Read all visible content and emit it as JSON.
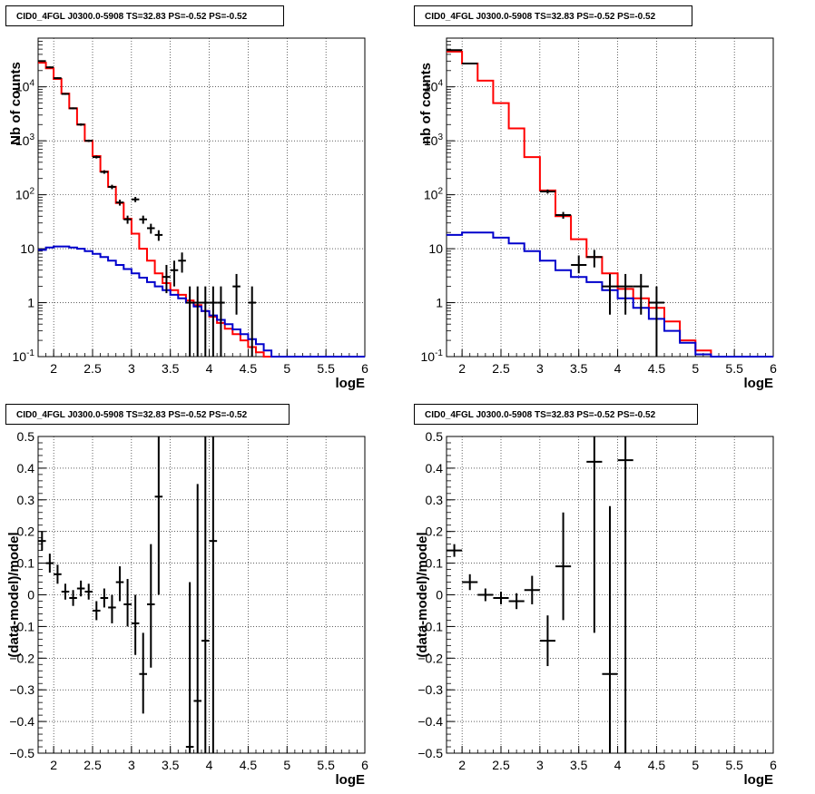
{
  "colors": {
    "data": "#000000",
    "total_model": "#ff0000",
    "component": "#0000cc",
    "grid": "#000000"
  },
  "chart_data": [
    {
      "type": "step",
      "title": "CID0_4FGL J0300.0-5908 TS=32.83 PS=-0.52 PS=-0.52",
      "xlabel": "logE",
      "ylabel": "Nb of counts",
      "xlim": [
        1.8,
        6
      ],
      "ylim": [
        0.1,
        80000
      ],
      "log_y": true,
      "grid": true,
      "x_ticks": [
        "2",
        "2.5",
        "3",
        "3.5",
        "4",
        "4.5",
        "5",
        "5.5",
        "6"
      ],
      "y_ticks": [
        "10^-1",
        "1",
        "10",
        "10^2",
        "10^3",
        "10^4"
      ],
      "series": [
        {
          "kind": "histogram",
          "color": "red",
          "edges": [
            1.8,
            1.9,
            2.0,
            2.1,
            2.2,
            2.3,
            2.4,
            2.5,
            2.6,
            2.7,
            2.8,
            2.9,
            3.0,
            3.1,
            3.2,
            3.3,
            3.4,
            3.5,
            3.6,
            3.7,
            3.8,
            3.9,
            4.0,
            4.1,
            4.2,
            4.3,
            4.4,
            4.5,
            4.6,
            4.7,
            4.8,
            4.9,
            5.0,
            5.1,
            5.2,
            5.3,
            5.4,
            5.5,
            5.6,
            5.7,
            5.8,
            5.9,
            6.0
          ],
          "values": [
            28000,
            22000,
            14000,
            7500,
            4000,
            2000,
            1000,
            520,
            270,
            140,
            70,
            36,
            19,
            10,
            6,
            3.5,
            2.3,
            1.7,
            1.4,
            1.1,
            0.9,
            0.7,
            0.55,
            0.42,
            0.33,
            0.26,
            0.2,
            0.15,
            0.12,
            0.1,
            0.1,
            0.1,
            0.1,
            0.1,
            0.1,
            0.1,
            0.1,
            0.1,
            0.1,
            0.1,
            0.1,
            0.1
          ]
        },
        {
          "kind": "histogram",
          "color": "blue",
          "edges": [
            1.8,
            1.9,
            2.0,
            2.1,
            2.2,
            2.3,
            2.4,
            2.5,
            2.6,
            2.7,
            2.8,
            2.9,
            3.0,
            3.1,
            3.2,
            3.3,
            3.4,
            3.5,
            3.6,
            3.7,
            3.8,
            3.9,
            4.0,
            4.1,
            4.2,
            4.3,
            4.4,
            4.5,
            4.6,
            4.7,
            4.8,
            4.9,
            5.0,
            5.1,
            5.2,
            5.3,
            5.4,
            5.5,
            5.6,
            5.7,
            5.8,
            5.9,
            6.0
          ],
          "values": [
            9.5,
            10.5,
            11,
            11,
            10.5,
            10,
            9,
            8,
            7,
            6,
            5,
            4.2,
            3.5,
            2.9,
            2.4,
            2,
            1.7,
            1.4,
            1.2,
            1,
            0.85,
            0.7,
            0.58,
            0.48,
            0.4,
            0.32,
            0.26,
            0.21,
            0.17,
            0.13,
            0.1,
            0.1,
            0.1,
            0.1,
            0.1,
            0.1,
            0.1,
            0.1,
            0.1,
            0.1,
            0.1,
            0.1
          ]
        },
        {
          "kind": "errorbar",
          "color": "black",
          "points": [
            {
              "x": 1.85,
              "y": 30000,
              "xerr": 0.05,
              "ylo": 29000,
              "yhi": 31000
            },
            {
              "x": 1.95,
              "y": 23000,
              "xerr": 0.05,
              "ylo": 22200,
              "yhi": 23800
            },
            {
              "x": 2.05,
              "y": 14500,
              "xerr": 0.05,
              "ylo": 14000,
              "yhi": 15000
            },
            {
              "x": 2.15,
              "y": 7400,
              "xerr": 0.05,
              "ylo": 7100,
              "yhi": 7700
            },
            {
              "x": 2.25,
              "y": 4000,
              "xerr": 0.05,
              "ylo": 3850,
              "yhi": 4150
            },
            {
              "x": 2.35,
              "y": 2000,
              "xerr": 0.05,
              "ylo": 1900,
              "yhi": 2100
            },
            {
              "x": 2.45,
              "y": 1000,
              "xerr": 0.05,
              "ylo": 950,
              "yhi": 1050
            },
            {
              "x": 2.55,
              "y": 500,
              "xerr": 0.05,
              "ylo": 470,
              "yhi": 530
            },
            {
              "x": 2.65,
              "y": 265,
              "xerr": 0.05,
              "ylo": 245,
              "yhi": 285
            },
            {
              "x": 2.75,
              "y": 140,
              "xerr": 0.05,
              "ylo": 127,
              "yhi": 153
            },
            {
              "x": 2.85,
              "y": 72,
              "xerr": 0.05,
              "ylo": 63,
              "yhi": 81
            },
            {
              "x": 2.95,
              "y": 35,
              "xerr": 0.05,
              "ylo": 29,
              "yhi": 41
            },
            {
              "x": 3.05,
              "y": 82,
              "xerr": 0.05,
              "ylo": 73,
              "yhi": 91
            },
            {
              "x": 3.15,
              "y": 35,
              "xerr": 0.05,
              "ylo": 29,
              "yhi": 41
            },
            {
              "x": 3.25,
              "y": 24,
              "xerr": 0.05,
              "ylo": 19,
              "yhi": 29
            },
            {
              "x": 3.35,
              "y": 18,
              "xerr": 0.05,
              "ylo": 14,
              "yhi": 22
            },
            {
              "x": 3.45,
              "y": 3,
              "xerr": 0.05,
              "ylo": 1.5,
              "yhi": 5
            },
            {
              "x": 3.55,
              "y": 4,
              "xerr": 0.05,
              "ylo": 2,
              "yhi": 6
            },
            {
              "x": 3.65,
              "y": 6,
              "xerr": 0.05,
              "ylo": 3.6,
              "yhi": 8.5
            },
            {
              "x": 3.75,
              "y": 1,
              "xerr": 0.05,
              "ylo": 0.1,
              "yhi": 2
            },
            {
              "x": 3.85,
              "y": 1,
              "xerr": 0.05,
              "ylo": 0.1,
              "yhi": 2
            },
            {
              "x": 3.95,
              "y": 1,
              "xerr": 0.05,
              "ylo": 0.1,
              "yhi": 2
            },
            {
              "x": 4.05,
              "y": 1,
              "xerr": 0.05,
              "ylo": 0.1,
              "yhi": 2
            },
            {
              "x": 4.15,
              "y": 1,
              "xerr": 0.05,
              "ylo": 0.1,
              "yhi": 2
            },
            {
              "x": 4.35,
              "y": 2,
              "xerr": 0.05,
              "ylo": 0.6,
              "yhi": 3.4
            },
            {
              "x": 4.55,
              "y": 1,
              "xerr": 0.05,
              "ylo": 0.1,
              "yhi": 2
            }
          ]
        }
      ]
    },
    {
      "type": "step",
      "title": "CID0_4FGL J0300.0-5908 TS=32.83 PS=-0.52 PS=-0.52",
      "xlabel": "logE",
      "ylabel": "nb of counts",
      "xlim": [
        1.8,
        6
      ],
      "ylim": [
        0.1,
        80000
      ],
      "log_y": true,
      "grid": true,
      "x_ticks": [
        "2",
        "2.5",
        "3",
        "3.5",
        "4",
        "4.5",
        "5",
        "5.5",
        "6"
      ],
      "y_ticks": [
        "10^-1",
        "1",
        "10",
        "10^2",
        "10^3",
        "10^4"
      ],
      "series": [
        {
          "kind": "histogram",
          "color": "red",
          "edges": [
            1.8,
            2.0,
            2.2,
            2.4,
            2.6,
            2.8,
            3.0,
            3.2,
            3.4,
            3.6,
            3.8,
            4.0,
            4.2,
            4.4,
            4.6,
            4.8,
            5.0,
            5.2,
            5.4,
            5.6,
            5.8,
            6.0
          ],
          "values": [
            45000,
            27000,
            13000,
            5000,
            1700,
            500,
            120,
            40,
            15,
            7,
            3.5,
            1.8,
            1.2,
            0.8,
            0.45,
            0.2,
            0.13,
            0.1,
            0.1,
            0.1,
            0.1
          ]
        },
        {
          "kind": "histogram",
          "color": "blue",
          "edges": [
            1.8,
            2.0,
            2.2,
            2.4,
            2.6,
            2.8,
            3.0,
            3.2,
            3.4,
            3.6,
            3.8,
            4.0,
            4.2,
            4.4,
            4.6,
            4.8,
            5.0,
            5.2,
            5.4,
            5.6,
            5.8,
            6.0
          ],
          "values": [
            18,
            20,
            20,
            16,
            12.5,
            9,
            6,
            4,
            3,
            2.4,
            1.7,
            1.2,
            0.8,
            0.5,
            0.3,
            0.18,
            0.11,
            0.1,
            0.1,
            0.1,
            0.1
          ]
        },
        {
          "kind": "errorbar",
          "color": "black",
          "points": [
            {
              "x": 1.9,
              "y": 48000,
              "xerr": 0.1,
              "ylo": 47000,
              "yhi": 49000
            },
            {
              "x": 2.1,
              "y": 27000,
              "xerr": 0.1,
              "ylo": 26300,
              "yhi": 27700
            },
            {
              "x": 3.1,
              "y": 115,
              "xerr": 0.1,
              "ylo": 105,
              "yhi": 125
            },
            {
              "x": 3.3,
              "y": 42,
              "xerr": 0.1,
              "ylo": 36,
              "yhi": 48
            },
            {
              "x": 3.5,
              "y": 5,
              "xerr": 0.1,
              "ylo": 3.5,
              "yhi": 7.5
            },
            {
              "x": 3.7,
              "y": 7,
              "xerr": 0.1,
              "ylo": 4.5,
              "yhi": 9.5
            },
            {
              "x": 3.9,
              "y": 2,
              "xerr": 0.1,
              "ylo": 0.6,
              "yhi": 3.4
            },
            {
              "x": 4.1,
              "y": 2,
              "xerr": 0.1,
              "ylo": 0.6,
              "yhi": 3.4
            },
            {
              "x": 4.3,
              "y": 2,
              "xerr": 0.1,
              "ylo": 0.6,
              "yhi": 3.4
            },
            {
              "x": 4.5,
              "y": 1,
              "xerr": 0.1,
              "ylo": 0.1,
              "yhi": 2
            }
          ]
        }
      ]
    },
    {
      "type": "scatter",
      "title": "CID0_4FGL J0300.0-5908 TS=32.83 PS=-0.52 PS=-0.52",
      "xlabel": "logE",
      "ylabel": "(data-model)/model",
      "xlim": [
        1.8,
        6
      ],
      "ylim": [
        -0.5,
        0.5
      ],
      "log_y": false,
      "grid": true,
      "x_ticks": [
        "2",
        "2.5",
        "3",
        "3.5",
        "4",
        "4.5",
        "5",
        "5.5",
        "6"
      ],
      "y_ticks": [
        "−0.5",
        "−0.4",
        "−0.3",
        "−0.2",
        "−0.1",
        "0",
        "0.1",
        "0.2",
        "0.3",
        "0.4",
        "0.5"
      ],
      "series": [
        {
          "kind": "errorbar",
          "color": "black",
          "points": [
            {
              "x": 1.85,
              "y": 0.17,
              "xerr": 0.05,
              "ylo": 0.14,
              "yhi": 0.2
            },
            {
              "x": 1.95,
              "y": 0.1,
              "xerr": 0.05,
              "ylo": 0.07,
              "yhi": 0.13
            },
            {
              "x": 2.05,
              "y": 0.065,
              "xerr": 0.05,
              "ylo": 0.035,
              "yhi": 0.095
            },
            {
              "x": 2.15,
              "y": 0.01,
              "xerr": 0.05,
              "ylo": -0.015,
              "yhi": 0.035
            },
            {
              "x": 2.25,
              "y": -0.01,
              "xerr": 0.05,
              "ylo": -0.035,
              "yhi": 0.015
            },
            {
              "x": 2.35,
              "y": 0.02,
              "xerr": 0.05,
              "ylo": -0.005,
              "yhi": 0.045
            },
            {
              "x": 2.45,
              "y": 0.01,
              "xerr": 0.05,
              "ylo": -0.015,
              "yhi": 0.035
            },
            {
              "x": 2.55,
              "y": -0.05,
              "xerr": 0.05,
              "ylo": -0.08,
              "yhi": -0.02
            },
            {
              "x": 2.65,
              "y": -0.01,
              "xerr": 0.05,
              "ylo": -0.04,
              "yhi": 0.02
            },
            {
              "x": 2.75,
              "y": -0.04,
              "xerr": 0.05,
              "ylo": -0.09,
              "yhi": 0.0
            },
            {
              "x": 2.85,
              "y": 0.04,
              "xerr": 0.05,
              "ylo": -0.02,
              "yhi": 0.09
            },
            {
              "x": 2.95,
              "y": -0.03,
              "xerr": 0.05,
              "ylo": -0.1,
              "yhi": 0.05
            },
            {
              "x": 3.05,
              "y": -0.09,
              "xerr": 0.05,
              "ylo": -0.19,
              "yhi": 0.0
            },
            {
              "x": 3.15,
              "y": -0.25,
              "xerr": 0.05,
              "ylo": -0.375,
              "yhi": -0.12
            },
            {
              "x": 3.25,
              "y": -0.03,
              "xerr": 0.05,
              "ylo": -0.23,
              "yhi": 0.16
            },
            {
              "x": 3.35,
              "y": 0.31,
              "xerr": 0.05,
              "ylo": 0.0,
              "yhi": 0.5
            },
            {
              "x": 3.75,
              "y": -0.48,
              "xerr": 0.05,
              "ylo": -0.5,
              "yhi": 0.04
            },
            {
              "x": 3.85,
              "y": -0.335,
              "xerr": 0.05,
              "ylo": -0.5,
              "yhi": 0.35
            },
            {
              "x": 3.95,
              "y": -0.145,
              "xerr": 0.05,
              "ylo": -0.5,
              "yhi": 0.5
            },
            {
              "x": 4.05,
              "y": 0.17,
              "xerr": 0.05,
              "ylo": -0.5,
              "yhi": 0.5
            }
          ]
        }
      ]
    },
    {
      "type": "scatter",
      "title": "CID0_4FGL J0300.0-5908 TS=32.83 PS=-0.52 PS=-0.52",
      "xlabel": "logE",
      "ylabel": "(data-model)/model",
      "xlim": [
        1.8,
        6
      ],
      "ylim": [
        -0.5,
        0.5
      ],
      "log_y": false,
      "grid": true,
      "x_ticks": [
        "2",
        "2.5",
        "3",
        "3.5",
        "4",
        "4.5",
        "5",
        "5.5",
        "6"
      ],
      "y_ticks": [
        "−0.5",
        "−0.4",
        "−0.3",
        "−0.2",
        "−0.1",
        "0",
        "0.1",
        "0.2",
        "0.3",
        "0.4",
        "0.5"
      ],
      "series": [
        {
          "kind": "errorbar",
          "color": "black",
          "points": [
            {
              "x": 1.9,
              "y": 0.14,
              "xerr": 0.1,
              "ylo": 0.12,
              "yhi": 0.16
            },
            {
              "x": 2.1,
              "y": 0.04,
              "xerr": 0.1,
              "ylo": 0.015,
              "yhi": 0.065
            },
            {
              "x": 2.3,
              "y": 0.0,
              "xerr": 0.1,
              "ylo": -0.02,
              "yhi": 0.02
            },
            {
              "x": 2.5,
              "y": -0.01,
              "xerr": 0.1,
              "ylo": -0.03,
              "yhi": 0.01
            },
            {
              "x": 2.7,
              "y": -0.02,
              "xerr": 0.1,
              "ylo": -0.045,
              "yhi": 0.005
            },
            {
              "x": 2.9,
              "y": 0.015,
              "xerr": 0.1,
              "ylo": -0.03,
              "yhi": 0.06
            },
            {
              "x": 3.1,
              "y": -0.145,
              "xerr": 0.1,
              "ylo": -0.225,
              "yhi": -0.065
            },
            {
              "x": 3.3,
              "y": 0.09,
              "xerr": 0.1,
              "ylo": -0.08,
              "yhi": 0.26
            },
            {
              "x": 3.7,
              "y": 0.42,
              "xerr": 0.1,
              "ylo": -0.12,
              "yhi": 0.5
            },
            {
              "x": 3.9,
              "y": -0.25,
              "xerr": 0.1,
              "ylo": -0.5,
              "yhi": 0.28
            },
            {
              "x": 4.1,
              "y": 0.425,
              "xerr": 0.1,
              "ylo": -0.5,
              "yhi": 0.5
            }
          ]
        }
      ]
    }
  ]
}
